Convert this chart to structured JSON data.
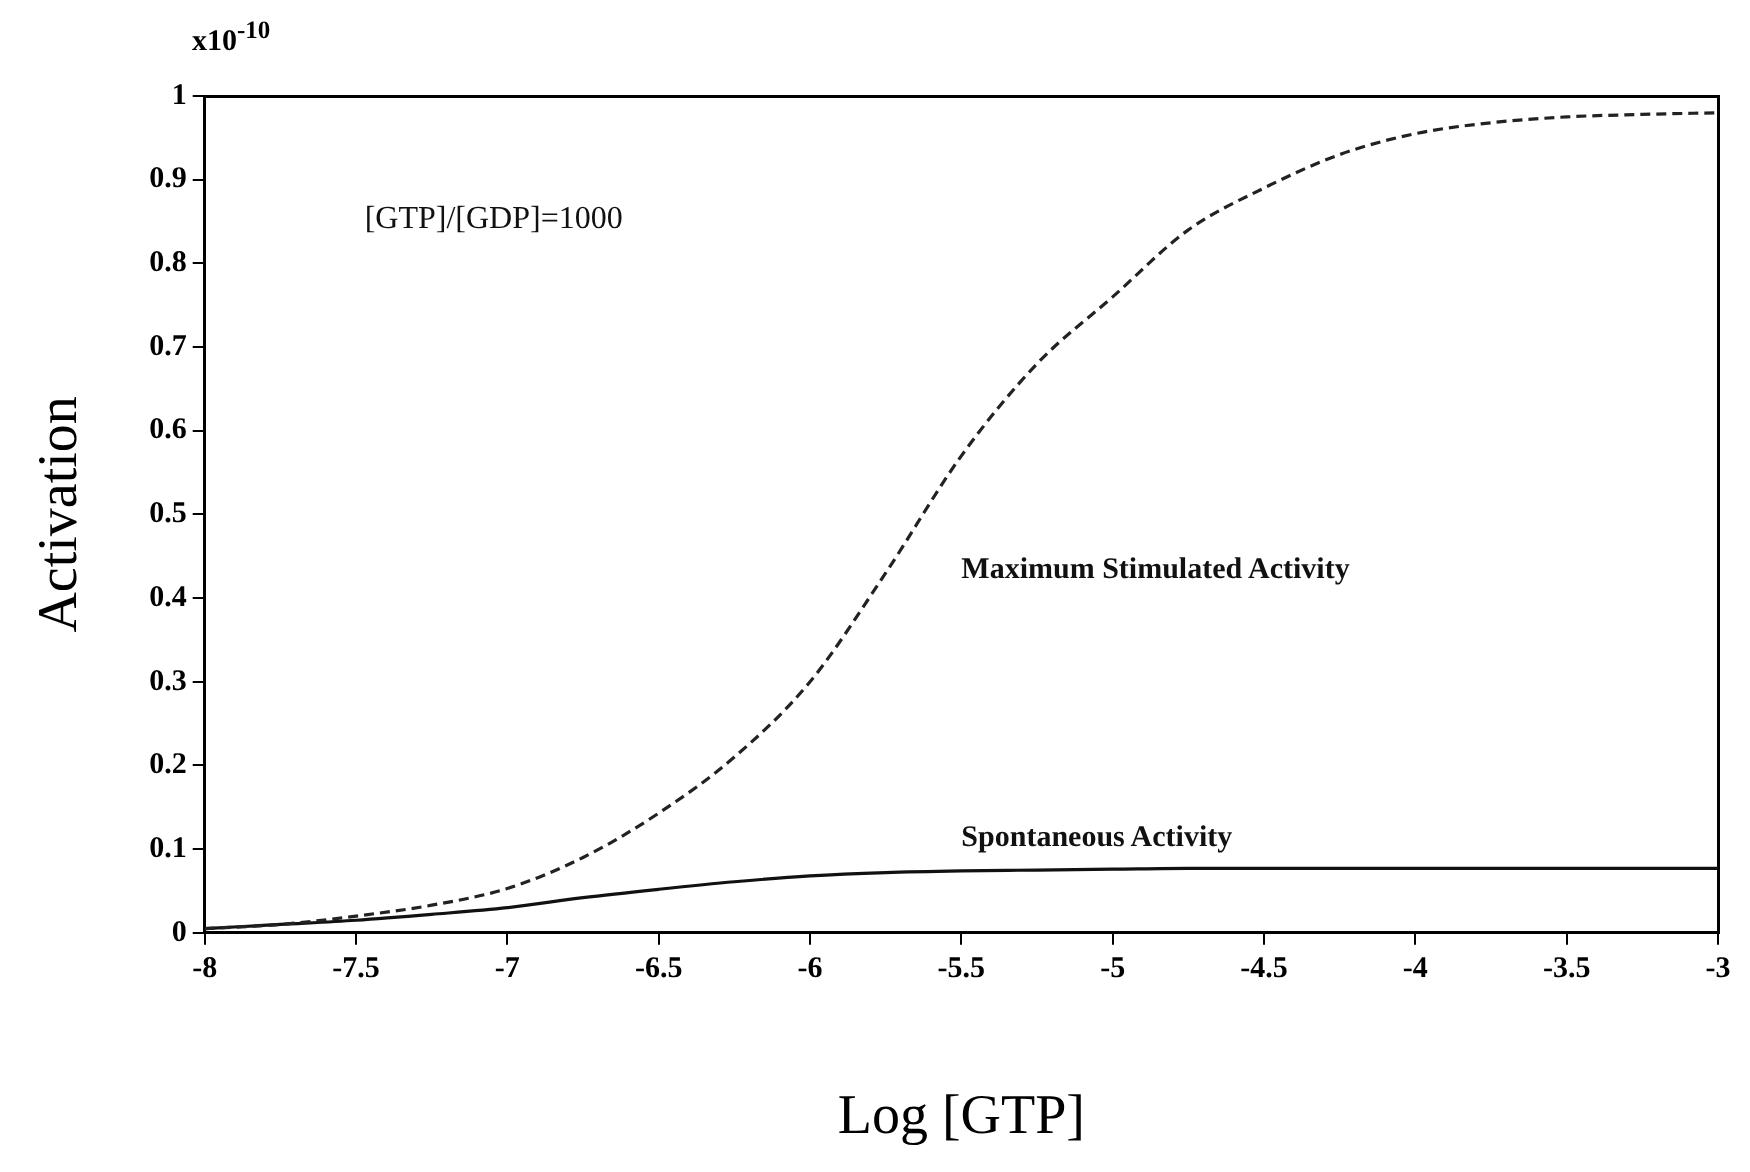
{
  "chart_data": {
    "type": "line",
    "xlabel": "Log [GTP]",
    "ylabel": "Activation",
    "annotations": [
      "x10$^{-10}$",
      "[GTP]/[GDP]=1000"
    ],
    "x": [
      -8,
      -7.75,
      -7.5,
      -7.25,
      -7,
      -6.75,
      -6.5,
      -6.25,
      -6,
      -5.75,
      -5.5,
      -5.25,
      -5,
      -4.75,
      -4.5,
      -4.25,
      -4,
      -3.75,
      -3.5,
      -3.25,
      -3
    ],
    "series": [
      {
        "name": "Maximum Stimulated Activity",
        "color": "#222222",
        "line_style": "dashed",
        "values": [
          0.005,
          0.01,
          0.02,
          0.033,
          0.053,
          0.09,
          0.143,
          0.21,
          0.3,
          0.43,
          0.57,
          0.68,
          0.76,
          0.84,
          0.89,
          0.93,
          0.955,
          0.968,
          0.975,
          0.978,
          0.98
        ]
      },
      {
        "name": "Spontaneous Activity",
        "color": "#111111",
        "line_style": "solid",
        "values": [
          0.005,
          0.01,
          0.015,
          0.022,
          0.03,
          0.042,
          0.052,
          0.061,
          0.068,
          0.072,
          0.074,
          0.075,
          0.076,
          0.077,
          0.077,
          0.077,
          0.077,
          0.077,
          0.077,
          0.077,
          0.077
        ]
      }
    ],
    "xlim": [
      -8,
      -3
    ],
    "xticks": [
      -8,
      -7.5,
      -7,
      -6.5,
      -6,
      -5.5,
      -5,
      -4.5,
      -4,
      -3.5,
      -3
    ],
    "ylim": [
      0,
      1
    ],
    "yticks": [
      0,
      0.1,
      0.2,
      0.3,
      0.4,
      0.5,
      0.6,
      0.7,
      0.8,
      0.9,
      1
    ],
    "grid": false,
    "legend": false,
    "marker": "none"
  }
}
